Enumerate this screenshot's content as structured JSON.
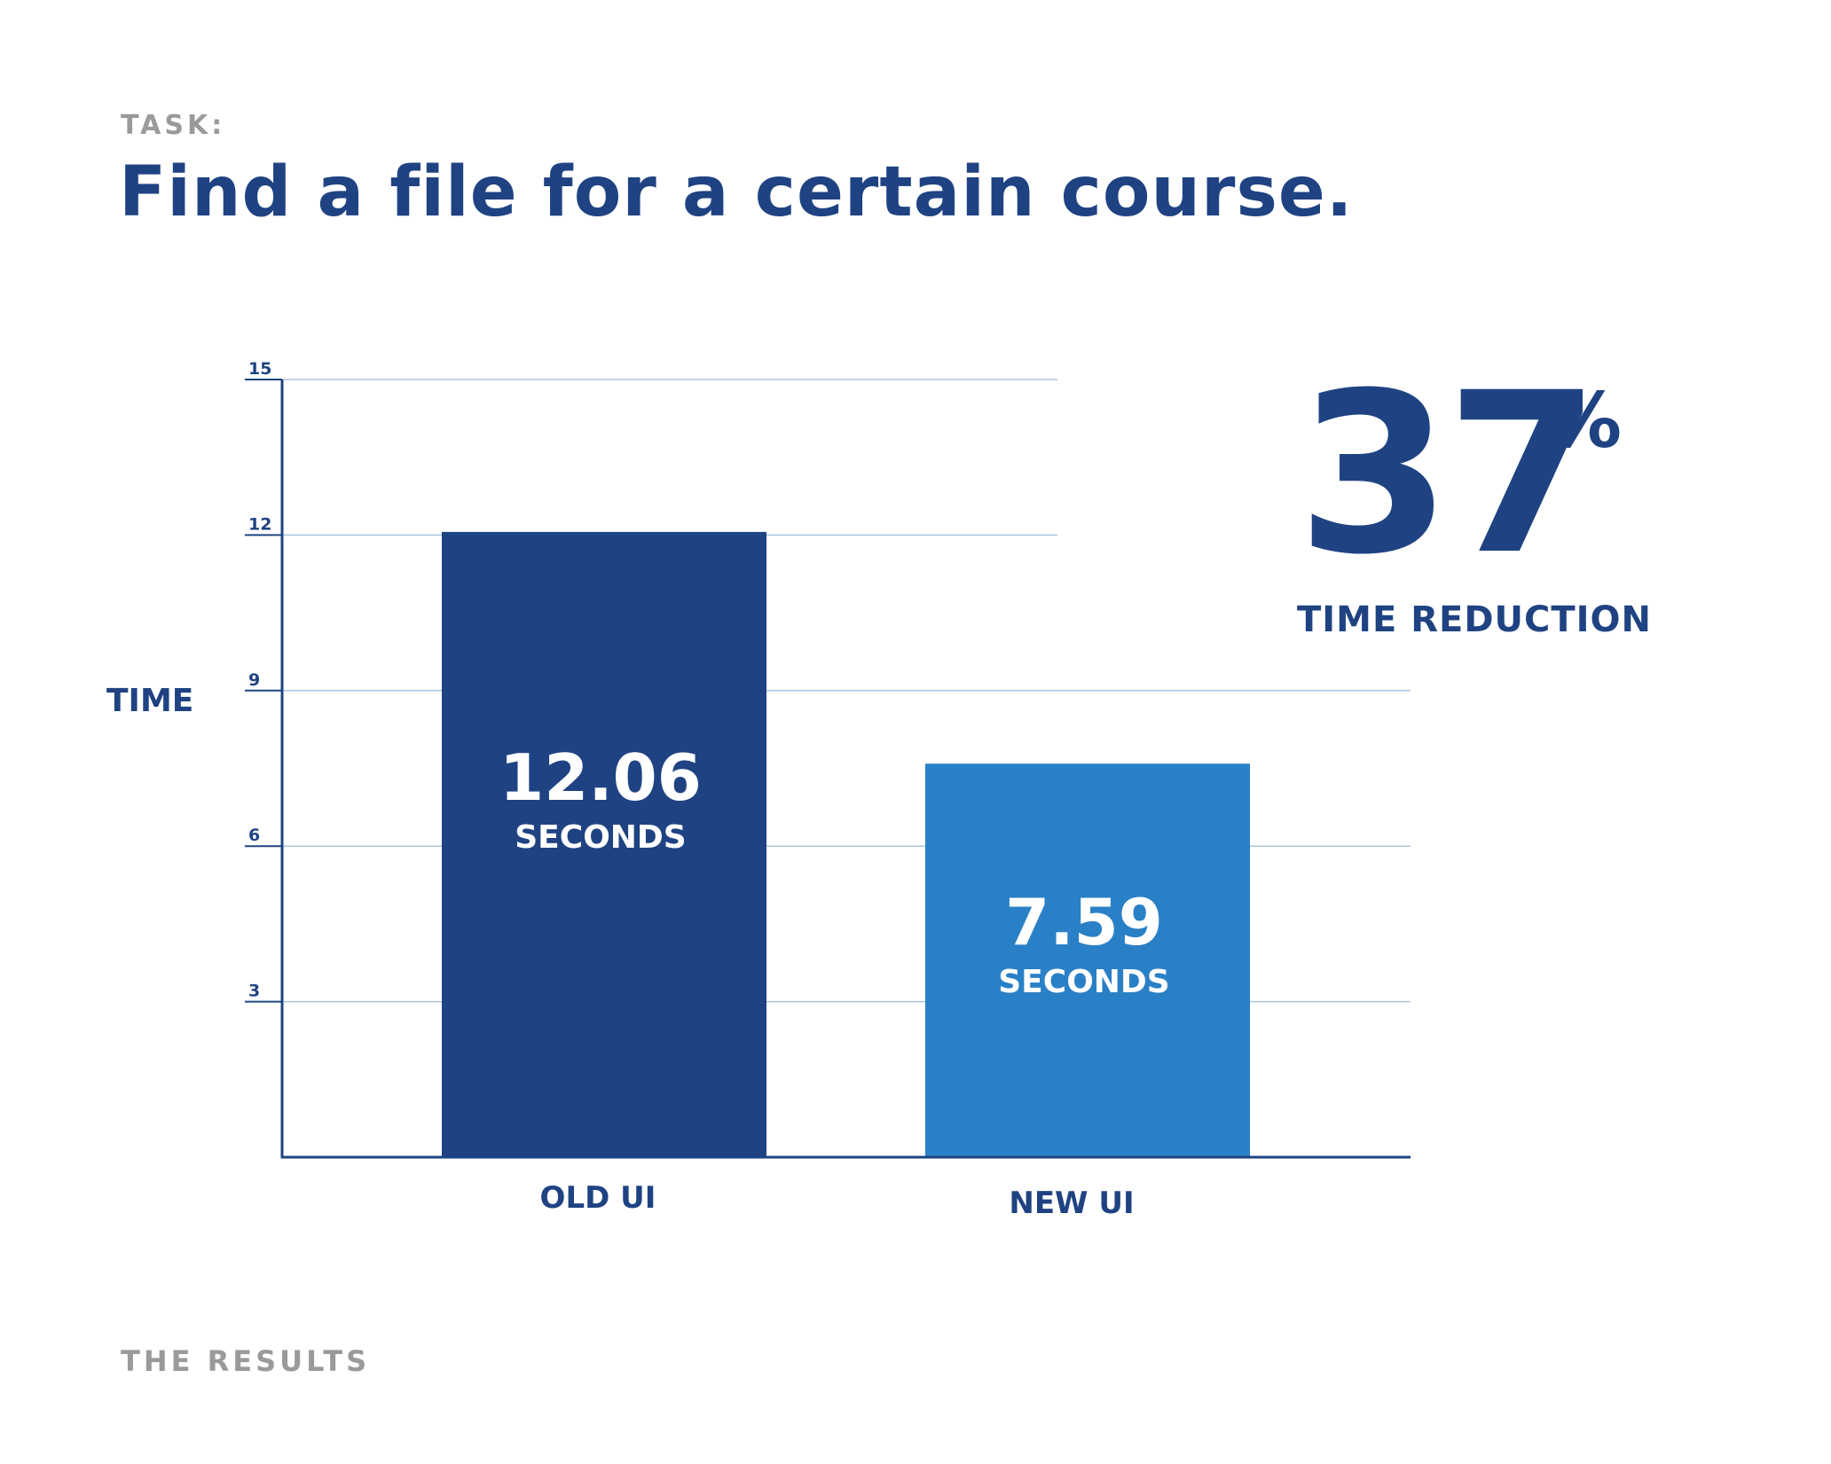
{
  "header": {
    "task_label": "TASK:",
    "title": "Find a file for a certain course."
  },
  "stat": {
    "value": "37",
    "symbol": "%",
    "caption": "TIME REDUCTION"
  },
  "footer": {
    "label": "THE RESULTS"
  },
  "colors": {
    "old_bar": "#1f4382",
    "new_bar": "#2a80c6",
    "text": "#1f4382",
    "grid": "#a9c6df",
    "muted": "#9a9a9a"
  },
  "chart_data": {
    "type": "bar",
    "ylabel": "TIME",
    "ylim": [
      0,
      15
    ],
    "yticks": [
      3,
      6,
      9,
      12,
      15
    ],
    "grid": true,
    "categories": [
      "OLD UI",
      "NEW UI"
    ],
    "values": [
      12.06,
      7.59
    ],
    "value_labels": [
      "12.06",
      "7.59"
    ],
    "unit_label": "SECONDS"
  }
}
